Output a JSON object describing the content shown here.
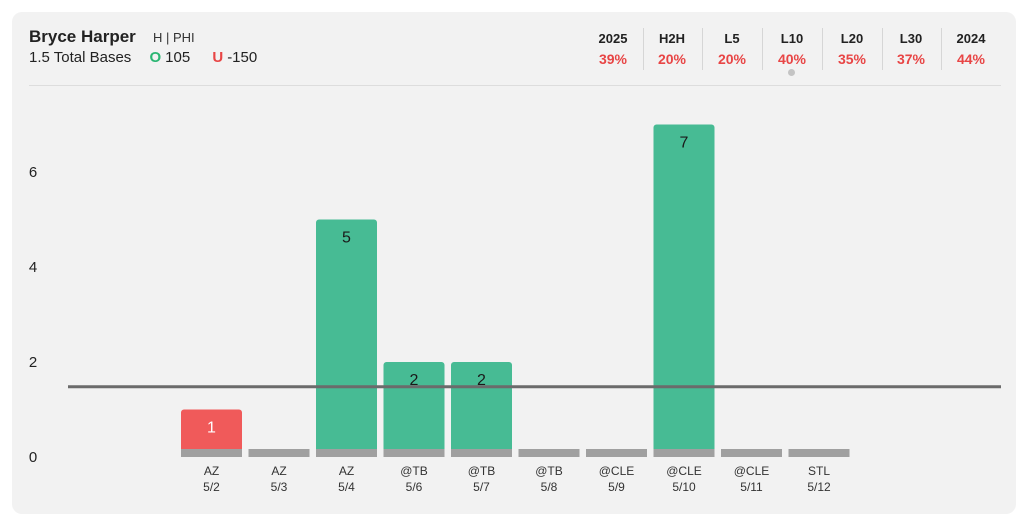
{
  "header": {
    "player_name": "Bryce Harper",
    "team": "H | PHI",
    "market": "1.5 Total Bases",
    "over_symbol": "O",
    "over_odds": "105",
    "under_symbol": "U",
    "under_odds": "-150"
  },
  "stats": [
    {
      "label": "2025",
      "value": "39%"
    },
    {
      "label": "H2H",
      "value": "20%"
    },
    {
      "label": "L5",
      "value": "20%"
    },
    {
      "label": "L10",
      "value": "40%",
      "selected": true
    },
    {
      "label": "L20",
      "value": "35%"
    },
    {
      "label": "L30",
      "value": "37%"
    },
    {
      "label": "2024",
      "value": "44%"
    }
  ],
  "colors": {
    "over": "#47bb94",
    "under": "#f05a5a",
    "zero": "#a0a0a0",
    "line": "#6b6b6b",
    "stat_value": "#e84545"
  },
  "chart_data": {
    "type": "bar",
    "y_ticks": [
      0,
      2,
      4,
      6
    ],
    "ylim": [
      0,
      7.4
    ],
    "prop_line": 1.5,
    "games": [
      {
        "opp": "AZ",
        "date": "5/2",
        "value": 1
      },
      {
        "opp": "AZ",
        "date": "5/3",
        "value": 0
      },
      {
        "opp": "AZ",
        "date": "5/4",
        "value": 5
      },
      {
        "opp": "@TB",
        "date": "5/6",
        "value": 2
      },
      {
        "opp": "@TB",
        "date": "5/7",
        "value": 2
      },
      {
        "opp": "@TB",
        "date": "5/8",
        "value": 0
      },
      {
        "opp": "@CLE",
        "date": "5/9",
        "value": 0
      },
      {
        "opp": "@CLE",
        "date": "5/10",
        "value": 7
      },
      {
        "opp": "@CLE",
        "date": "5/11",
        "value": 0
      },
      {
        "opp": "STL",
        "date": "5/12",
        "value": 0
      }
    ]
  }
}
